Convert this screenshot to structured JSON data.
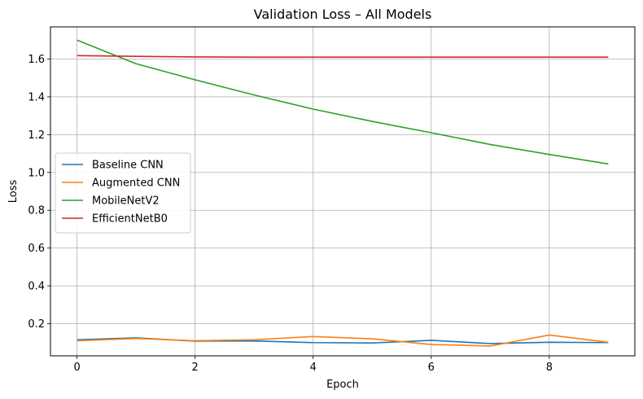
{
  "chart_data": {
    "type": "line",
    "title": "Validation Loss – All Models",
    "xlabel": "Epoch",
    "ylabel": "Loss",
    "x": [
      0,
      1,
      2,
      3,
      4,
      5,
      6,
      7,
      8,
      9
    ],
    "xlim": [
      -0.45,
      9.45
    ],
    "ylim": [
      0.03,
      1.77
    ],
    "xticks": [
      0,
      2,
      4,
      6,
      8
    ],
    "yticks": [
      0.2,
      0.4,
      0.6,
      0.8,
      1.0,
      1.2,
      1.4,
      1.6
    ],
    "grid": true,
    "legend_position": "center-left",
    "series": [
      {
        "name": "Baseline CNN",
        "color": "#1f77b4",
        "values": [
          0.115,
          0.125,
          0.108,
          0.109,
          0.1,
          0.098,
          0.112,
          0.095,
          0.102,
          0.1
        ]
      },
      {
        "name": "Augmented CNN",
        "color": "#ff7f0e",
        "values": [
          0.11,
          0.122,
          0.11,
          0.115,
          0.132,
          0.12,
          0.09,
          0.082,
          0.14,
          0.102
        ]
      },
      {
        "name": "MobileNetV2",
        "color": "#2ca02c",
        "values": [
          1.7,
          1.575,
          1.49,
          1.41,
          1.335,
          1.27,
          1.21,
          1.148,
          1.095,
          1.045
        ]
      },
      {
        "name": "EfficientNetB0",
        "color": "#d62728",
        "values": [
          1.618,
          1.614,
          1.611,
          1.61,
          1.61,
          1.61,
          1.61,
          1.61,
          1.61,
          1.61
        ]
      }
    ]
  }
}
